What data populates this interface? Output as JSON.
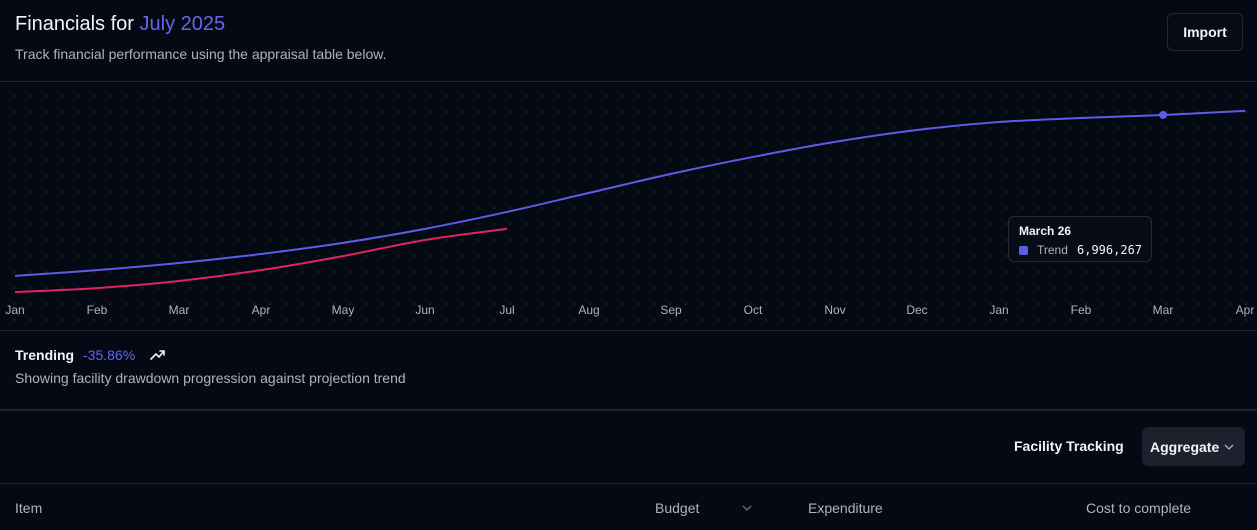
{
  "header": {
    "title": "Financials for",
    "period": "July 2025",
    "subtitle": "Track financial performance using the appraisal table below.",
    "button": "Import"
  },
  "chart_data": {
    "type": "line",
    "categories": [
      "Jan",
      "Feb",
      "Mar",
      "Apr",
      "May",
      "Jun",
      "Jul",
      "Aug",
      "Sep",
      "Oct",
      "Nov",
      "Dec",
      "Jan",
      "Feb",
      "Mar",
      "Apr"
    ],
    "series": [
      {
        "name": "Trend",
        "color": "#5b5ce8",
        "values": [
          910000,
          1130000,
          1400000,
          1740000,
          2160000,
          2690000,
          3330000,
          4050000,
          4770000,
          5410000,
          5980000,
          6430000,
          6730000,
          6880000,
          6996267,
          7150000
        ],
        "value_labels": [
          null,
          null,
          null,
          null,
          null,
          null,
          null,
          null,
          null,
          null,
          null,
          null,
          null,
          null,
          "6,996,267",
          null
        ]
      },
      {
        "color": "#e0245e",
        "values": [
          300000,
          450000,
          720000,
          1130000,
          1660000,
          2270000,
          2690000,
          null,
          null,
          null,
          null,
          null,
          null,
          null,
          null,
          null
        ]
      }
    ],
    "ylim": [
      0,
      8130000
    ],
    "tooltip": {
      "title": "March 26",
      "index": 14
    }
  },
  "summary": {
    "label": "Trending",
    "change": "-35.86%",
    "description": "Showing facility drawdown progression against projection trend"
  },
  "toolbar": {
    "label": "Facility Tracking",
    "select": "Aggregate"
  },
  "table": {
    "columns": [
      "Item",
      "Budget",
      "Expenditure",
      "Cost to complete"
    ]
  }
}
